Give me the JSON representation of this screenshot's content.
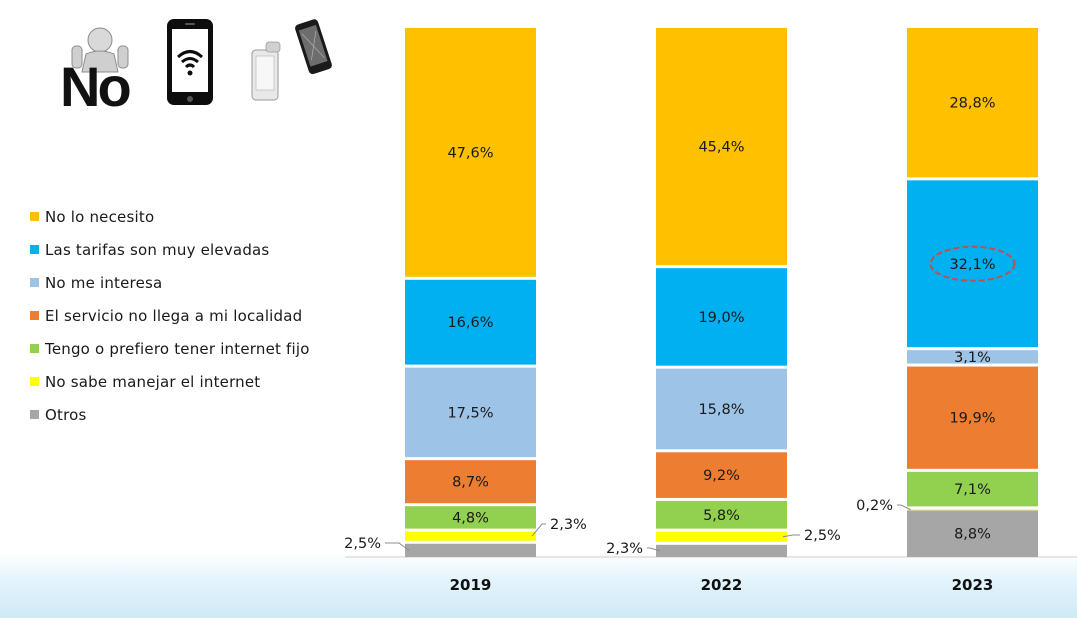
{
  "chart_data": {
    "type": "bar",
    "stacked": true,
    "normalized": true,
    "categories": [
      "2019",
      "2022",
      "2023"
    ],
    "series": [
      {
        "name": "No lo necesito",
        "color": "#FFC000",
        "values": [
          47.6,
          45.4,
          28.8
        ],
        "labels": [
          "47,6%",
          "45,4%",
          "28,8%"
        ]
      },
      {
        "name": "Las tarifas son muy elevadas",
        "color": "#00B0F0",
        "values": [
          16.6,
          19.0,
          32.1
        ],
        "labels": [
          "16,6%",
          "19,0%",
          "32,1%"
        ]
      },
      {
        "name": "No me interesa",
        "color": "#9DC3E6",
        "values": [
          17.5,
          15.8,
          3.1
        ],
        "labels": [
          "17,5%",
          "15,8%",
          "3,1%"
        ]
      },
      {
        "name": "El servicio no llega a mi localidad",
        "color": "#ED7D31",
        "values": [
          8.7,
          9.2,
          19.9
        ],
        "labels": [
          "8,7%",
          "9,2%",
          "19,9%"
        ]
      },
      {
        "name": "Tengo o prefiero tener internet fijo",
        "color": "#92D050",
        "values": [
          4.8,
          5.8,
          7.1
        ],
        "labels": [
          "4,8%",
          "5,8%",
          "7,1%"
        ]
      },
      {
        "name": "No sabe manejar el internet",
        "color": "#FFFF00",
        "values": [
          2.3,
          2.5,
          0.2
        ],
        "labels": [
          "2,3%",
          "2,5%",
          "0,2%"
        ]
      },
      {
        "name": "Otros",
        "color": "#A6A6A6",
        "values": [
          2.5,
          2.3,
          8.8
        ],
        "labels": [
          "2,5%",
          "2,3%",
          "8,8%"
        ]
      }
    ],
    "highlighted": {
      "category": "2023",
      "series": "Las tarifas son muy elevadas",
      "style": "dashed-ellipse",
      "color": "#C0504D"
    },
    "legend_position": "left",
    "grid": false
  },
  "icons": [
    "no-person-icon",
    "smartphone-wifi-icon",
    "phone-hand-icon"
  ],
  "icon_text": {
    "no": "No"
  }
}
